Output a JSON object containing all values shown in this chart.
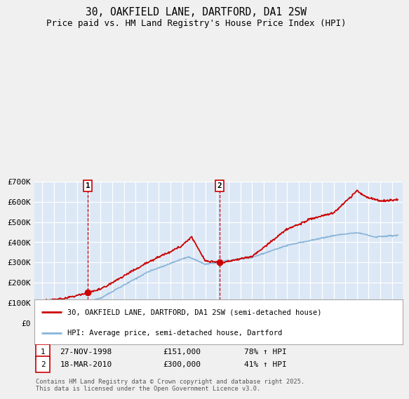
{
  "title": "30, OAKFIELD LANE, DARTFORD, DA1 2SW",
  "subtitle": "Price paid vs. HM Land Registry's House Price Index (HPI)",
  "ylim": [
    0,
    700000
  ],
  "yticks": [
    0,
    100000,
    200000,
    300000,
    400000,
    500000,
    600000,
    700000
  ],
  "ytick_labels": [
    "£0",
    "£100K",
    "£200K",
    "£300K",
    "£400K",
    "£500K",
    "£600K",
    "£700K"
  ],
  "fig_bg_color": "#f0f0f0",
  "plot_bg_color": "#dce8f5",
  "grid_color": "#ffffff",
  "red_line_color": "#cc0000",
  "blue_line_color": "#88b4d8",
  "purchase1_date": 1998.91,
  "purchase1_price": 151000,
  "purchase2_date": 2010.22,
  "purchase2_price": 300000,
  "legend_entry1": "30, OAKFIELD LANE, DARTFORD, DA1 2SW (semi-detached house)",
  "legend_entry2": "HPI: Average price, semi-detached house, Dartford",
  "table_row1": [
    "1",
    "27-NOV-1998",
    "£151,000",
    "78% ↑ HPI"
  ],
  "table_row2": [
    "2",
    "18-MAR-2010",
    "£300,000",
    "41% ↑ HPI"
  ],
  "footer": "Contains HM Land Registry data © Crown copyright and database right 2025.\nThis data is licensed under the Open Government Licence v3.0.",
  "title_fontsize": 10.5,
  "subtitle_fontsize": 9
}
